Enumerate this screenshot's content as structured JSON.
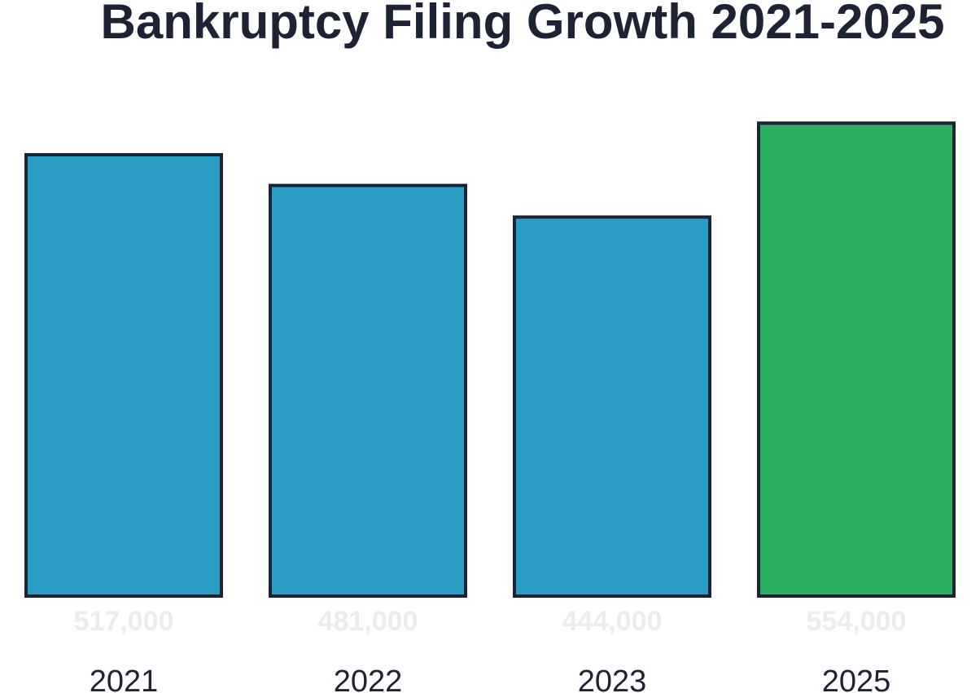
{
  "chart_data": {
    "type": "bar",
    "title": "Bankruptcy Filing Growth 2021-2025",
    "xlabel": "",
    "ylabel": "",
    "categories": [
      "2021",
      "2022",
      "2023",
      "2025"
    ],
    "values": [
      517000,
      481000,
      444000,
      554000
    ],
    "data_labels": [
      "517,000",
      "481,000",
      "444,000",
      "554,000"
    ],
    "ylim": [
      0,
      620000
    ],
    "grid": false,
    "legend": "none"
  },
  "colors": {
    "bar_default": "#2b9fc5",
    "bar_highlight": "#2aae60",
    "highlight_category": "2025",
    "outline": "#1e2235",
    "text": "#1e2235",
    "data_label_text": "#ececec",
    "background": "#ffffff"
  }
}
